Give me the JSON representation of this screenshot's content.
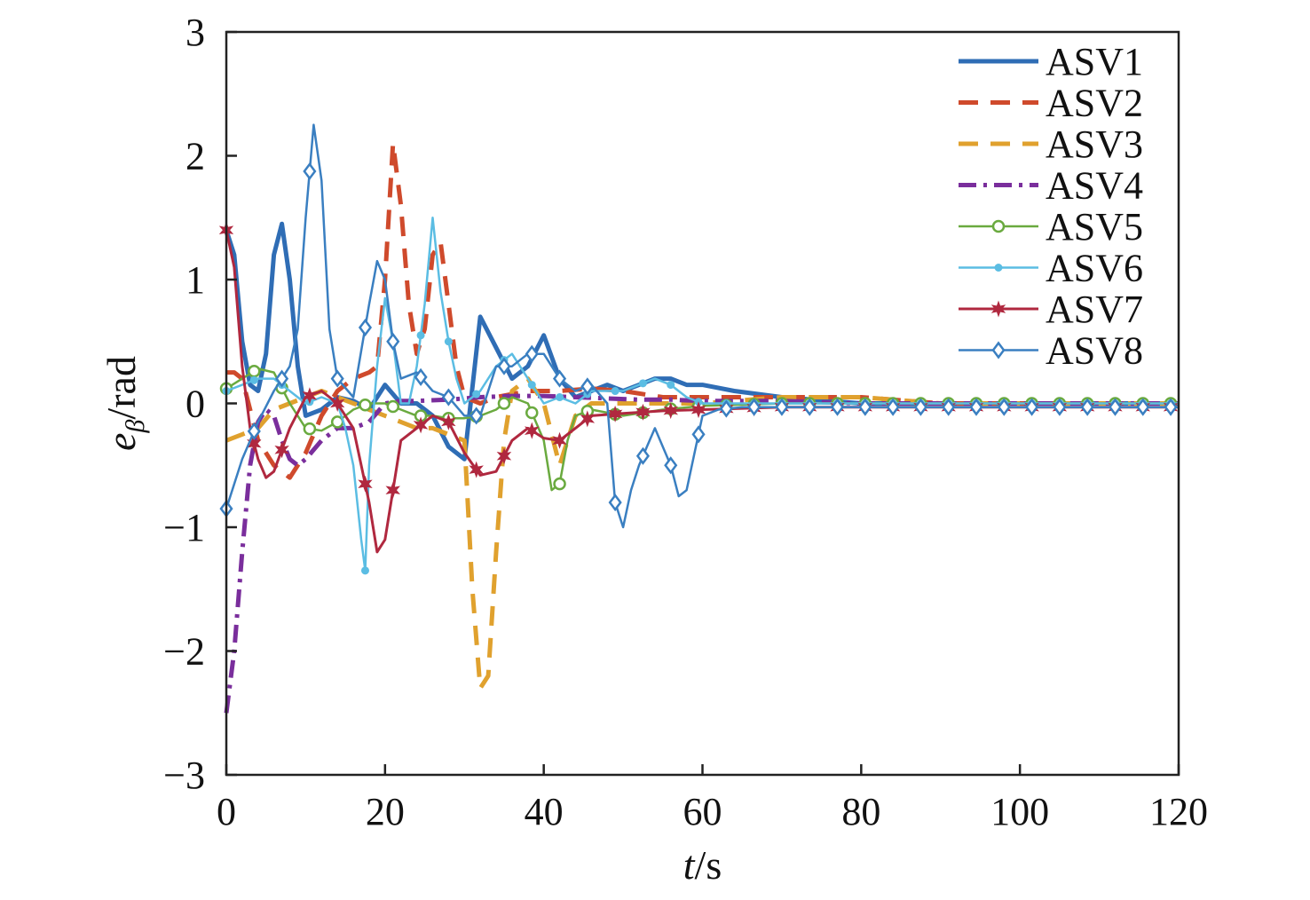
{
  "chart_data": {
    "type": "line",
    "xlabel": {
      "italic": "t",
      "rest": "/s"
    },
    "ylabel": {
      "italic": "e",
      "sub": "β",
      "rest": "/rad"
    },
    "xlim": [
      0,
      120
    ],
    "ylim": [
      -3,
      3
    ],
    "xticks": [
      0,
      20,
      40,
      60,
      80,
      100,
      120
    ],
    "yticks": [
      -3,
      -2,
      -1,
      0,
      1,
      2,
      3
    ],
    "xtick_labels": [
      "0",
      "20",
      "40",
      "60",
      "80",
      "100",
      "120"
    ],
    "ytick_labels": [
      "−3",
      "−2",
      "−1",
      "0",
      "1",
      "2",
      "3"
    ],
    "grid": false,
    "legend_position": "top-right",
    "series": [
      {
        "name": "ASV1",
        "color": "#2f6db5",
        "dash": "solid",
        "marker": "none",
        "width": 5,
        "x": [
          0,
          1,
          2,
          3,
          4,
          5,
          6,
          7,
          8,
          9,
          10,
          12,
          14,
          16,
          18,
          20,
          22,
          24,
          26,
          28,
          30,
          32,
          34,
          36,
          38,
          40,
          42,
          44,
          46,
          48,
          50,
          52,
          54,
          56,
          58,
          60,
          64,
          70,
          80,
          90,
          100,
          110,
          120
        ],
        "y": [
          1.4,
          1.2,
          0.5,
          0.15,
          0.1,
          0.4,
          1.2,
          1.45,
          1.0,
          0.3,
          -0.1,
          -0.05,
          0.05,
          0.02,
          -0.05,
          0.15,
          0.0,
          0.0,
          -0.1,
          -0.35,
          -0.45,
          0.7,
          0.45,
          0.2,
          0.3,
          0.55,
          0.2,
          0.05,
          0.1,
          0.15,
          0.1,
          0.15,
          0.2,
          0.2,
          0.15,
          0.15,
          0.1,
          0.05,
          0.0,
          0.0,
          0.0,
          0.0,
          0.0
        ]
      },
      {
        "name": "ASV2",
        "color": "#cf4a2c",
        "dash": "long",
        "marker": "none",
        "width": 5,
        "x": [
          0,
          1,
          2,
          3,
          4,
          6,
          8,
          10,
          12,
          14,
          16,
          18,
          19,
          20,
          21,
          22,
          23,
          24,
          25,
          26,
          27,
          28,
          29,
          30,
          32,
          34,
          38,
          42,
          46,
          50,
          55,
          60,
          70,
          80,
          90,
          100,
          110,
          120
        ],
        "y": [
          0.25,
          0.25,
          0.2,
          -0.05,
          -0.3,
          -0.5,
          -0.6,
          -0.4,
          -0.1,
          0.1,
          0.2,
          0.25,
          0.3,
          1.0,
          2.1,
          1.6,
          0.8,
          0.4,
          0.6,
          1.2,
          1.3,
          0.8,
          0.3,
          0.05,
          0.0,
          0.05,
          0.1,
          0.1,
          0.12,
          0.1,
          0.05,
          0.05,
          0.05,
          0.05,
          0.0,
          0.0,
          0.0,
          0.0
        ]
      },
      {
        "name": "ASV3",
        "color": "#e0a12e",
        "dash": "long",
        "marker": "none",
        "width": 5,
        "x": [
          0,
          2,
          4,
          6,
          8,
          10,
          12,
          14,
          16,
          18,
          20,
          22,
          24,
          26,
          28,
          30,
          31,
          32,
          33,
          34,
          35,
          36,
          38,
          40,
          42,
          44,
          46,
          50,
          55,
          60,
          70,
          80,
          90,
          100,
          110,
          120
        ],
        "y": [
          -0.3,
          -0.25,
          -0.2,
          -0.05,
          0.0,
          0.05,
          0.1,
          0.05,
          0.0,
          -0.05,
          -0.1,
          -0.15,
          -0.2,
          -0.2,
          -0.25,
          -0.3,
          -1.5,
          -2.3,
          -2.2,
          -1.2,
          -0.3,
          0.1,
          0.2,
          0.0,
          -0.5,
          -0.1,
          0.0,
          0.0,
          0.0,
          0.0,
          0.05,
          0.05,
          0.0,
          0.0,
          0.0,
          0.0
        ]
      },
      {
        "name": "ASV4",
        "color": "#7a2e9c",
        "dash": "dashdot",
        "marker": "none",
        "width": 5,
        "x": [
          0,
          1,
          2,
          3,
          4,
          5,
          6,
          7,
          8,
          9,
          10,
          12,
          14,
          16,
          18,
          20,
          22,
          24,
          28,
          32,
          36,
          40,
          44,
          48,
          52,
          56,
          60,
          70,
          80,
          90,
          100,
          110,
          120
        ],
        "y": [
          -2.5,
          -2.0,
          -1.2,
          -0.5,
          -0.15,
          -0.05,
          -0.1,
          -0.3,
          -0.45,
          -0.5,
          -0.45,
          -0.3,
          -0.2,
          -0.2,
          -0.15,
          0.0,
          0.02,
          0.02,
          0.03,
          0.05,
          0.06,
          0.06,
          0.05,
          0.04,
          0.03,
          0.03,
          0.02,
          0.02,
          0.0,
          0.0,
          0.0,
          0.0,
          0.0
        ]
      },
      {
        "name": "ASV5",
        "color": "#6aaa3f",
        "dash": "solid",
        "marker": "circle",
        "width": 2.5,
        "x": [
          0,
          2,
          4,
          6,
          8,
          10,
          12,
          14,
          16,
          18,
          20,
          22,
          24,
          26,
          28,
          30,
          32,
          34,
          36,
          38,
          40,
          41,
          42,
          43,
          44,
          46,
          50,
          55,
          60,
          70,
          80,
          90,
          100,
          110,
          120
        ],
        "y": [
          0.12,
          0.2,
          0.28,
          0.25,
          0.0,
          -0.2,
          -0.22,
          -0.15,
          -0.05,
          0.0,
          0.0,
          -0.05,
          -0.1,
          -0.1,
          -0.12,
          -0.12,
          -0.1,
          -0.05,
          0.05,
          0.0,
          -0.3,
          -0.7,
          -0.65,
          -0.3,
          -0.1,
          -0.05,
          -0.1,
          -0.05,
          -0.02,
          0.0,
          0.0,
          0.0,
          0.0,
          0.0,
          0.0
        ]
      },
      {
        "name": "ASV6",
        "color": "#5bbde3",
        "dash": "solid",
        "marker": "dot",
        "width": 2.5,
        "x": [
          0,
          2,
          4,
          6,
          8,
          10,
          12,
          14,
          15,
          16,
          17,
          17.5,
          18,
          19,
          20,
          21,
          22,
          23,
          24,
          25,
          26,
          27,
          28,
          29,
          30,
          32,
          34,
          36,
          38,
          40,
          42,
          44,
          46,
          50,
          52,
          54,
          56,
          58,
          60,
          70,
          80,
          90,
          100,
          110,
          120
        ],
        "y": [
          0.1,
          0.15,
          0.2,
          0.2,
          0.1,
          0.0,
          0.05,
          0.0,
          -0.2,
          -0.5,
          -1.1,
          -1.35,
          -0.5,
          0.3,
          0.85,
          0.5,
          0.0,
          0.0,
          0.3,
          0.8,
          1.5,
          0.9,
          0.5,
          0.2,
          0.0,
          0.1,
          0.3,
          0.4,
          0.2,
          0.0,
          0.05,
          0.0,
          0.1,
          0.1,
          0.15,
          0.2,
          0.15,
          0.05,
          0.0,
          0.0,
          0.0,
          0.0,
          0.0,
          0.0,
          0.0
        ]
      },
      {
        "name": "ASV7",
        "color": "#b0283f",
        "dash": "solid",
        "marker": "star",
        "width": 3,
        "x": [
          0,
          1,
          2,
          3,
          4,
          5,
          6,
          8,
          10,
          12,
          14,
          16,
          18,
          19,
          20,
          21,
          22,
          24,
          26,
          28,
          30,
          32,
          34,
          36,
          38,
          40,
          42,
          44,
          46,
          50,
          55,
          60,
          70,
          80,
          90,
          100,
          110,
          120
        ],
        "y": [
          1.4,
          1.1,
          0.3,
          -0.2,
          -0.45,
          -0.6,
          -0.55,
          -0.2,
          0.05,
          0.1,
          0.0,
          -0.2,
          -0.8,
          -1.2,
          -1.1,
          -0.7,
          -0.3,
          -0.2,
          -0.1,
          -0.15,
          -0.4,
          -0.58,
          -0.55,
          -0.3,
          -0.2,
          -0.28,
          -0.3,
          -0.2,
          -0.1,
          -0.08,
          -0.06,
          -0.05,
          -0.03,
          -0.03,
          -0.03,
          -0.03,
          -0.03,
          -0.03
        ]
      },
      {
        "name": "ASV8",
        "color": "#3a7fc1",
        "dash": "solid",
        "marker": "diamond",
        "width": 2.5,
        "x": [
          0,
          2,
          4,
          6,
          8,
          9,
          10,
          11,
          12,
          13,
          14,
          16,
          18,
          19,
          20,
          21,
          22,
          24,
          26,
          28,
          30,
          32,
          34,
          36,
          38,
          40,
          42,
          44,
          46,
          48,
          49,
          50,
          51,
          52,
          53,
          54,
          56,
          57,
          58,
          60,
          62,
          65,
          70,
          80,
          90,
          100,
          110,
          120
        ],
        "y": [
          -0.85,
          -0.45,
          -0.15,
          0.1,
          0.3,
          0.6,
          1.5,
          2.25,
          1.8,
          0.6,
          0.2,
          0.05,
          0.8,
          1.15,
          1.0,
          0.5,
          0.2,
          0.25,
          0.1,
          0.05,
          -0.1,
          -0.1,
          0.3,
          0.3,
          0.4,
          0.4,
          0.2,
          0.1,
          0.15,
          0.0,
          -0.8,
          -1.0,
          -0.7,
          -0.5,
          -0.35,
          -0.2,
          -0.5,
          -0.75,
          -0.7,
          -0.1,
          -0.05,
          -0.03,
          -0.03,
          -0.03,
          -0.03,
          -0.03,
          -0.03,
          -0.03
        ]
      }
    ]
  }
}
